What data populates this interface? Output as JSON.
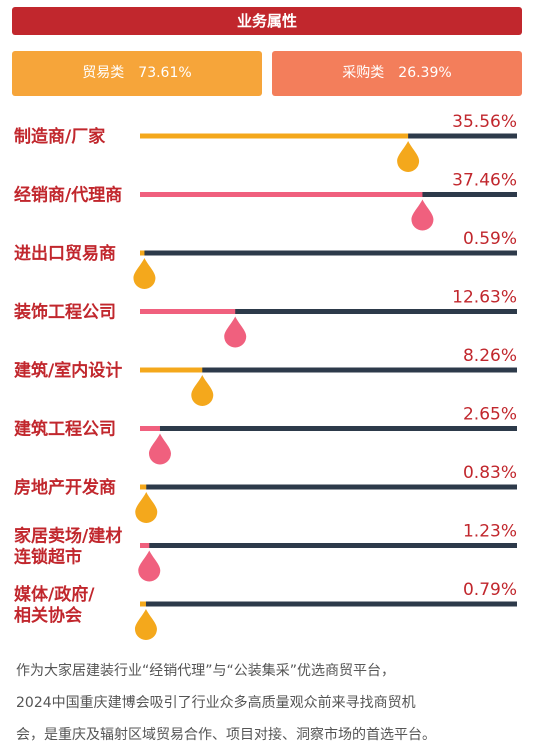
{
  "header": {
    "title": "业务属性"
  },
  "categories": {
    "trade": {
      "label": "贸易类",
      "value": "73.61%"
    },
    "purchase": {
      "label": "采购类",
      "value": "26.39%"
    }
  },
  "colors": {
    "orange": "#f4a81c",
    "pink": "#f0607e",
    "track": "#2d3a4a",
    "red": "#c1272d"
  },
  "chart_data": {
    "type": "bar",
    "categories": [
      [
        "制造商/厂家"
      ],
      [
        "经销商/代理商"
      ],
      [
        "进出口贸易商"
      ],
      [
        "装饰工程公司"
      ],
      [
        "建筑/室内设计"
      ],
      [
        "建筑工程公司"
      ],
      [
        "房地产开发商"
      ],
      [
        "家居卖场/建材",
        "连锁超市"
      ],
      [
        "媒体/政府/",
        "相关协会"
      ]
    ],
    "values": [
      35.56,
      37.46,
      0.59,
      12.63,
      8.26,
      2.65,
      0.83,
      1.23,
      0.79
    ],
    "value_labels": [
      "35.56%",
      "37.46%",
      "0.59%",
      "12.63%",
      "8.26%",
      "2.65%",
      "0.83%",
      "1.23%",
      "0.79%"
    ],
    "bar_colors": [
      "orange",
      "pink",
      "orange",
      "pink",
      "orange",
      "pink",
      "orange",
      "pink",
      "orange"
    ],
    "xlim": [
      0,
      50
    ]
  },
  "footer": {
    "lines": [
      "作为大家居建装行业“经销代理”与“公装集采”优选商贸平台，",
      "2024中国重庆建博会吸引了行业众多高质量观众前来寻找商贸机",
      "会，是重庆及辐射区域贸易合作、项目对接、洞察市场的首选平台。"
    ]
  }
}
